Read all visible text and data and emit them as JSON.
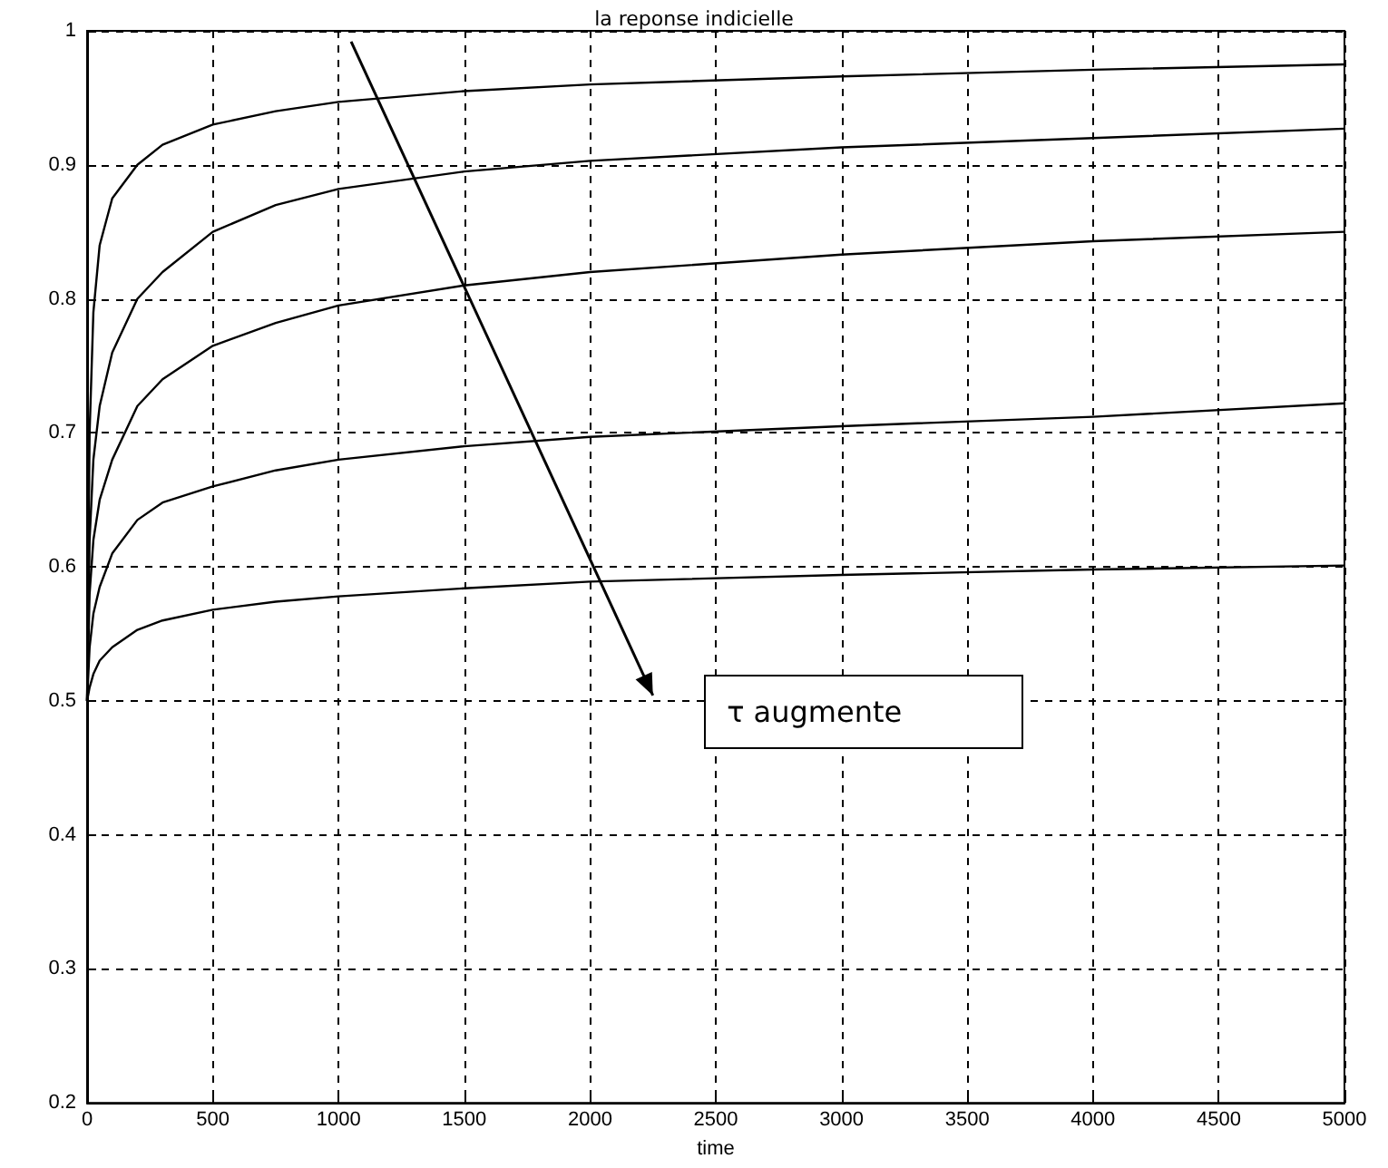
{
  "chart_data": {
    "type": "line",
    "title": "la reponse indicielle",
    "xlabel": "time",
    "x": [
      0,
      10,
      25,
      50,
      100,
      200,
      300,
      500,
      750,
      1000,
      1500,
      2000,
      3000,
      4000,
      5000
    ],
    "series": [
      {
        "color": "#000000",
        "values": [
          0.5,
          0.7,
          0.79,
          0.84,
          0.875,
          0.9,
          0.915,
          0.93,
          0.94,
          0.947,
          0.955,
          0.96,
          0.966,
          0.971,
          0.975
        ]
      },
      {
        "color": "#000000",
        "values": [
          0.5,
          0.62,
          0.68,
          0.72,
          0.76,
          0.8,
          0.82,
          0.85,
          0.87,
          0.882,
          0.895,
          0.903,
          0.913,
          0.92,
          0.927
        ]
      },
      {
        "color": "#000000",
        "values": [
          0.5,
          0.58,
          0.62,
          0.65,
          0.68,
          0.72,
          0.74,
          0.765,
          0.782,
          0.795,
          0.81,
          0.82,
          0.833,
          0.843,
          0.85
        ]
      },
      {
        "color": "#000000",
        "values": [
          0.5,
          0.54,
          0.565,
          0.585,
          0.61,
          0.635,
          0.648,
          0.66,
          0.672,
          0.68,
          0.69,
          0.697,
          0.705,
          0.712,
          0.722
        ]
      },
      {
        "color": "#000000",
        "values": [
          0.5,
          0.51,
          0.52,
          0.53,
          0.54,
          0.553,
          0.56,
          0.568,
          0.574,
          0.578,
          0.584,
          0.589,
          0.594,
          0.598,
          0.601
        ]
      }
    ],
    "xlim": [
      0,
      5000
    ],
    "xticks": [
      0,
      500,
      1000,
      1500,
      2000,
      2500,
      3000,
      3500,
      4000,
      4500,
      5000
    ],
    "ylim": [
      0.2,
      1
    ],
    "yticks": [
      0.2,
      0.3,
      0.4,
      0.5,
      0.6,
      0.7,
      0.8,
      0.9,
      1
    ],
    "grid": true,
    "marker": "none",
    "line_style": "solid",
    "annotations": [
      "τ augmente"
    ]
  }
}
